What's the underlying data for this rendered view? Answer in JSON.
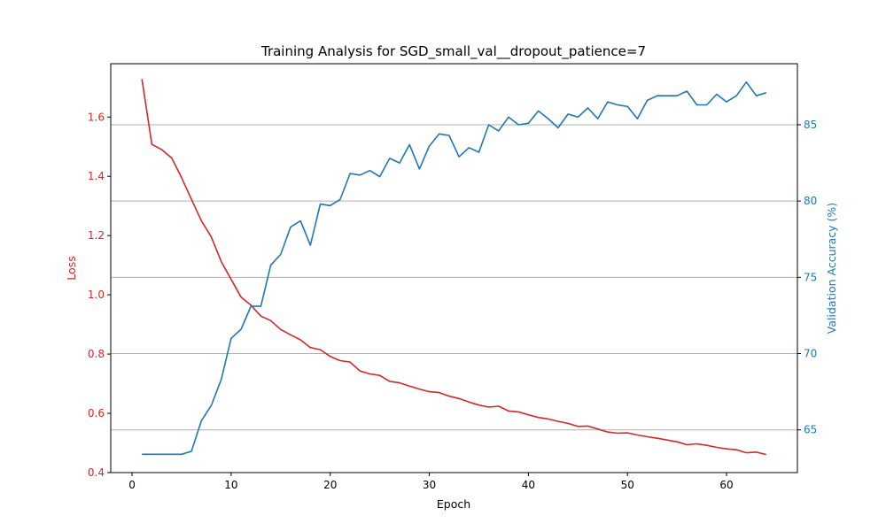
{
  "chart_data": {
    "type": "line",
    "title": "Training Analysis for SGD_small_val__dropout_patience=7",
    "xlabel": "Epoch",
    "ylabel_left": "Loss",
    "ylabel_right": "Validation Accuracy (%)",
    "xlim": [
      -2.15,
      67.15
    ],
    "ylim_left": [
      0.4,
      1.78
    ],
    "ylim_right": [
      62.2,
      89.0
    ],
    "xticks": [
      0,
      10,
      20,
      30,
      40,
      50,
      60
    ],
    "yticks_left": [
      0.4,
      0.6,
      0.8,
      1.0,
      1.2,
      1.4,
      1.6
    ],
    "yticks_left_labels": [
      "0.4",
      "0.6",
      "0.8",
      "1.0",
      "1.2",
      "1.4",
      "1.6"
    ],
    "yticks_right": [
      65,
      70,
      75,
      80,
      85
    ],
    "grid": "horizontal lines at right-axis ticks",
    "colors": {
      "loss": "#d62728",
      "accuracy": "#1f77b4"
    },
    "x": [
      1,
      2,
      3,
      4,
      5,
      6,
      7,
      8,
      9,
      10,
      11,
      12,
      13,
      14,
      15,
      16,
      17,
      18,
      19,
      20,
      21,
      22,
      23,
      24,
      25,
      26,
      27,
      28,
      29,
      30,
      31,
      32,
      33,
      34,
      35,
      36,
      37,
      38,
      39,
      40,
      41,
      42,
      43,
      44,
      45,
      46,
      47,
      48,
      49,
      50,
      51,
      52,
      53,
      54,
      55,
      56,
      57,
      58,
      59,
      60,
      61,
      62,
      63,
      64
    ],
    "series": [
      {
        "axis": "left",
        "values": [
          1.728,
          1.508,
          1.49,
          1.462,
          1.395,
          1.322,
          1.25,
          1.195,
          1.112,
          1.052,
          0.992,
          0.965,
          0.928,
          0.913,
          0.883,
          0.865,
          0.848,
          0.822,
          0.815,
          0.792,
          0.778,
          0.773,
          0.743,
          0.733,
          0.728,
          0.708,
          0.703,
          0.692,
          0.682,
          0.673,
          0.67,
          0.658,
          0.65,
          0.638,
          0.628,
          0.621,
          0.624,
          0.608,
          0.605,
          0.595,
          0.586,
          0.581,
          0.573,
          0.566,
          0.556,
          0.557,
          0.547,
          0.537,
          0.533,
          0.534,
          0.527,
          0.521,
          0.516,
          0.51,
          0.504,
          0.494,
          0.497,
          0.492,
          0.485,
          0.48,
          0.477,
          0.467,
          0.469,
          0.461
        ]
      },
      {
        "axis": "right",
        "values": [
          63.4,
          63.4,
          63.4,
          63.4,
          63.4,
          63.6,
          65.6,
          66.6,
          68.3,
          71.0,
          71.6,
          73.1,
          73.1,
          75.8,
          76.5,
          78.3,
          78.7,
          77.1,
          79.8,
          79.7,
          80.1,
          81.8,
          81.7,
          82.0,
          81.6,
          82.8,
          82.5,
          83.7,
          82.1,
          83.6,
          84.4,
          84.3,
          82.9,
          83.5,
          83.2,
          85.0,
          84.6,
          85.5,
          85.0,
          85.1,
          85.9,
          85.4,
          84.8,
          85.7,
          85.5,
          86.1,
          85.4,
          86.5,
          86.3,
          86.2,
          85.4,
          86.6,
          86.9,
          86.9,
          86.9,
          87.2,
          86.3,
          86.3,
          87.0,
          86.5,
          86.9,
          87.8,
          86.9,
          87.1
        ]
      }
    ]
  }
}
